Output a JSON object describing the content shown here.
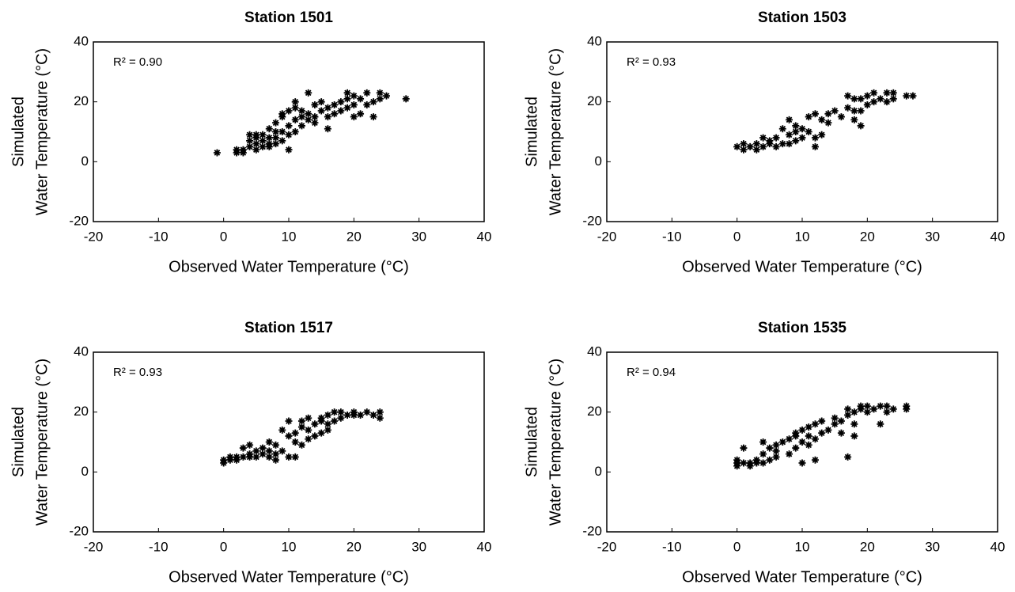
{
  "chart_data": [
    {
      "type": "scatter",
      "title": "Station 1501",
      "x_label": "Observed Water Temperature (°C)",
      "y_label": [
        "Simulated",
        "Water Temperature (°C)"
      ],
      "annotation": "R² = 0.90",
      "marker": "asterisk",
      "color": "#000000",
      "x": [
        -1,
        2,
        2,
        3,
        3,
        4,
        4,
        4,
        5,
        5,
        5,
        5,
        6,
        6,
        6,
        7,
        7,
        7,
        7,
        8,
        8,
        8,
        8,
        9,
        9,
        9,
        9,
        10,
        10,
        10,
        10,
        11,
        11,
        11,
        11,
        12,
        12,
        12,
        13,
        13,
        13,
        14,
        14,
        14,
        15,
        15,
        16,
        16,
        16,
        17,
        17,
        18,
        18,
        19,
        19,
        19,
        20,
        20,
        20,
        21,
        21,
        22,
        22,
        23,
        23,
        24,
        24,
        25,
        28
      ],
      "values": [
        3,
        3,
        4,
        3,
        4,
        5,
        7,
        9,
        4,
        6,
        8,
        9,
        5,
        7,
        9,
        5,
        6,
        8,
        11,
        6,
        8,
        10,
        13,
        7,
        10,
        15,
        16,
        4,
        9,
        12,
        17,
        10,
        14,
        18,
        20,
        12,
        15,
        17,
        14,
        16,
        23,
        13,
        15,
        19,
        17,
        20,
        11,
        15,
        18,
        16,
        19,
        17,
        20,
        18,
        21,
        23,
        15,
        19,
        22,
        16,
        21,
        19,
        23,
        15,
        20,
        21,
        23,
        22,
        21
      ],
      "xlim": [
        -20,
        40
      ],
      "ylim": [
        -20,
        40
      ],
      "xticks": [
        -20,
        -10,
        0,
        10,
        20,
        30,
        40
      ],
      "yticks": [
        -20,
        0,
        20,
        40
      ]
    },
    {
      "type": "scatter",
      "title": "Station 1503",
      "x_label": "Observed Water Temperature (°C)",
      "y_label": [
        "Simulated",
        "Water Temperature (°C)"
      ],
      "annotation": "R² = 0.93",
      "marker": "asterisk",
      "color": "#000000",
      "x": [
        0,
        1,
        1,
        2,
        3,
        3,
        4,
        4,
        5,
        5,
        6,
        6,
        7,
        7,
        8,
        8,
        8,
        9,
        9,
        9,
        10,
        10,
        11,
        11,
        12,
        12,
        12,
        13,
        13,
        14,
        14,
        15,
        16,
        17,
        17,
        18,
        18,
        18,
        19,
        19,
        19,
        20,
        20,
        21,
        21,
        22,
        23,
        23,
        24,
        24,
        26,
        27
      ],
      "values": [
        5,
        4,
        6,
        5,
        4,
        6,
        5,
        8,
        6,
        7,
        5,
        8,
        6,
        11,
        6,
        9,
        14,
        7,
        10,
        12,
        8,
        11,
        10,
        15,
        5,
        8,
        16,
        9,
        14,
        13,
        16,
        17,
        15,
        18,
        22,
        14,
        17,
        21,
        12,
        17,
        21,
        19,
        22,
        20,
        23,
        21,
        20,
        23,
        21,
        23,
        22,
        22
      ],
      "xlim": [
        -20,
        40
      ],
      "ylim": [
        -20,
        40
      ],
      "xticks": [
        -20,
        -10,
        0,
        10,
        20,
        30,
        40
      ],
      "yticks": [
        -20,
        0,
        20,
        40
      ]
    },
    {
      "type": "scatter",
      "title": "Station 1517",
      "x_label": "Observed Water Temperature (°C)",
      "y_label": [
        "Simulated",
        "Water Temperature (°C)"
      ],
      "annotation": "R² = 0.93",
      "marker": "asterisk",
      "color": "#000000",
      "x": [
        0,
        0,
        1,
        1,
        2,
        2,
        3,
        3,
        4,
        4,
        4,
        5,
        5,
        6,
        6,
        7,
        7,
        7,
        8,
        8,
        8,
        9,
        9,
        10,
        10,
        10,
        11,
        11,
        11,
        12,
        12,
        12,
        13,
        13,
        13,
        14,
        14,
        15,
        15,
        15,
        16,
        16,
        16,
        17,
        17,
        18,
        18,
        19,
        20,
        20,
        21,
        22,
        23,
        24,
        24
      ],
      "values": [
        3,
        4,
        4,
        5,
        4,
        5,
        5,
        8,
        5,
        6,
        9,
        5,
        7,
        6,
        8,
        5,
        7,
        10,
        4,
        6,
        9,
        7,
        14,
        5,
        12,
        17,
        5,
        10,
        13,
        9,
        15,
        17,
        11,
        14,
        18,
        12,
        16,
        13,
        17,
        18,
        14,
        16,
        19,
        17,
        20,
        18,
        20,
        19,
        19,
        20,
        19,
        20,
        19,
        18,
        20
      ],
      "xlim": [
        -20,
        40
      ],
      "ylim": [
        -20,
        40
      ],
      "xticks": [
        -20,
        -10,
        0,
        10,
        20,
        30,
        40
      ],
      "yticks": [
        -20,
        0,
        20,
        40
      ]
    },
    {
      "type": "scatter",
      "title": "Station 1535",
      "x_label": "Observed Water Temperature (°C)",
      "y_label": [
        "Simulated",
        "Water Temperature (°C)"
      ],
      "annotation": "R² = 0.94",
      "marker": "asterisk",
      "color": "#000000",
      "x": [
        0,
        0,
        0,
        1,
        1,
        2,
        2,
        3,
        3,
        4,
        4,
        4,
        5,
        5,
        6,
        6,
        6,
        7,
        8,
        8,
        9,
        9,
        9,
        10,
        10,
        10,
        11,
        11,
        11,
        12,
        12,
        12,
        13,
        13,
        14,
        15,
        15,
        16,
        16,
        17,
        17,
        17,
        18,
        18,
        18,
        19,
        19,
        20,
        20,
        21,
        22,
        22,
        23,
        23,
        24,
        26,
        26
      ],
      "values": [
        2,
        3,
        4,
        3,
        8,
        2,
        3,
        3,
        4,
        3,
        6,
        10,
        4,
        8,
        5,
        7,
        9,
        10,
        6,
        11,
        8,
        12,
        13,
        3,
        10,
        14,
        9,
        12,
        15,
        4,
        11,
        16,
        13,
        17,
        14,
        16,
        18,
        13,
        17,
        5,
        19,
        21,
        12,
        16,
        20,
        21,
        22,
        20,
        22,
        21,
        22,
        16,
        20,
        22,
        21,
        21,
        22
      ],
      "xlim": [
        -20,
        40
      ],
      "ylim": [
        -20,
        40
      ],
      "xticks": [
        -20,
        -10,
        0,
        10,
        20,
        30,
        40
      ],
      "yticks": [
        -20,
        0,
        20,
        40
      ]
    }
  ]
}
